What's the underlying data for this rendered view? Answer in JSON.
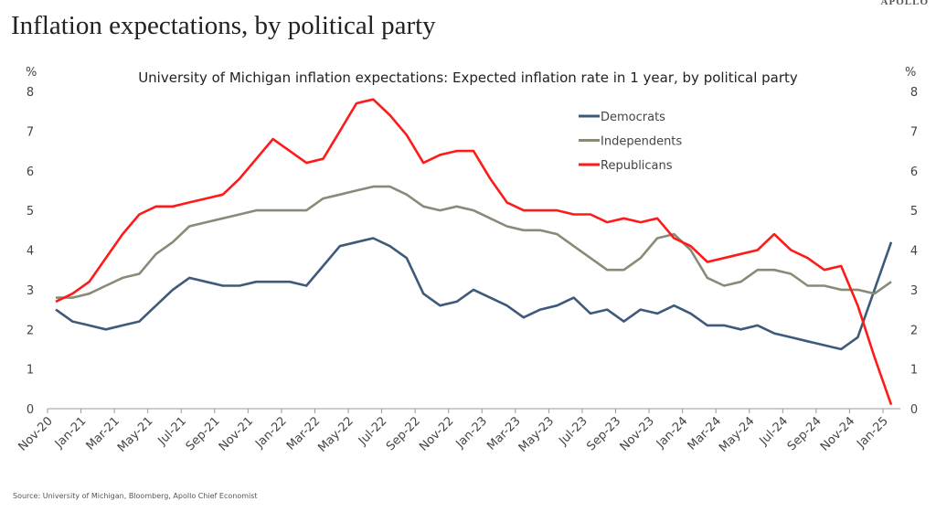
{
  "header": {
    "title": "Inflation expectations, by political party",
    "logo": "APOLLO"
  },
  "footer": {
    "source": "Source: University of Michigan, Bloomberg, Apollo Chief Economist"
  },
  "chart_data": {
    "type": "line",
    "title": "University of Michigan inflation expectations: Expected inflation rate in 1 year, by political party",
    "ylabel_left": "%",
    "ylabel_right": "%",
    "ylim": [
      0,
      8
    ],
    "yticks": [
      0,
      1,
      2,
      3,
      4,
      5,
      6,
      7,
      8
    ],
    "grid": false,
    "legend_position": "top-right",
    "x_start": "Nov-20",
    "x_end": "Jan-25",
    "x_frequency": "monthly",
    "xtick_labels": [
      "Nov-20",
      "Jan-21",
      "Mar-21",
      "May-21",
      "Jul-21",
      "Sep-21",
      "Nov-21",
      "Jan-22",
      "Mar-22",
      "May-22",
      "Jul-22",
      "Sep-22",
      "Nov-22",
      "Jan-23",
      "Mar-23",
      "May-23",
      "Jul-23",
      "Sep-23",
      "Nov-23",
      "Jan-24",
      "Mar-24",
      "May-24",
      "Jul-24",
      "Sep-24",
      "Nov-24",
      "Jan-25"
    ],
    "series": [
      {
        "name": "Democrats",
        "color": "#3d5a7a",
        "values": [
          2.5,
          2.2,
          2.1,
          2.0,
          2.1,
          2.2,
          2.6,
          3.0,
          3.3,
          3.2,
          3.1,
          3.1,
          3.2,
          3.2,
          3.2,
          3.1,
          3.6,
          4.1,
          4.2,
          4.3,
          4.1,
          3.8,
          2.9,
          2.6,
          2.7,
          3.0,
          2.8,
          2.6,
          2.3,
          2.5,
          2.6,
          2.8,
          2.4,
          2.5,
          2.2,
          2.5,
          2.4,
          2.6,
          2.4,
          2.1,
          2.1,
          2.0,
          2.1,
          1.9,
          1.8,
          1.7,
          1.6,
          1.5,
          1.8,
          3.0,
          4.2
        ]
      },
      {
        "name": "Independents",
        "color": "#8a8a78",
        "values": [
          2.8,
          2.8,
          2.9,
          3.1,
          3.3,
          3.4,
          3.9,
          4.2,
          4.6,
          4.7,
          4.8,
          4.9,
          5.0,
          5.0,
          5.0,
          5.0,
          5.3,
          5.4,
          5.5,
          5.6,
          5.6,
          5.4,
          5.1,
          5.0,
          5.1,
          5.0,
          4.8,
          4.6,
          4.5,
          4.5,
          4.4,
          4.1,
          3.8,
          3.5,
          3.5,
          3.8,
          4.3,
          4.4,
          4.0,
          3.3,
          3.1,
          3.2,
          3.5,
          3.5,
          3.4,
          3.1,
          3.1,
          3.0,
          3.0,
          2.9,
          3.2
        ]
      },
      {
        "name": "Republicans",
        "color": "#ff1a1a",
        "values": [
          2.7,
          2.9,
          3.2,
          3.8,
          4.4,
          4.9,
          5.1,
          5.1,
          5.2,
          5.3,
          5.4,
          5.8,
          6.3,
          6.8,
          6.5,
          6.2,
          6.3,
          7.0,
          7.7,
          7.8,
          7.4,
          6.9,
          6.2,
          6.4,
          6.5,
          6.5,
          5.8,
          5.2,
          5.0,
          5.0,
          5.0,
          4.9,
          4.9,
          4.7,
          4.8,
          4.7,
          4.8,
          4.3,
          4.1,
          3.7,
          3.8,
          3.9,
          4.0,
          4.4,
          4.0,
          3.8,
          3.5,
          3.6,
          2.6,
          1.3,
          0.1
        ]
      }
    ]
  }
}
